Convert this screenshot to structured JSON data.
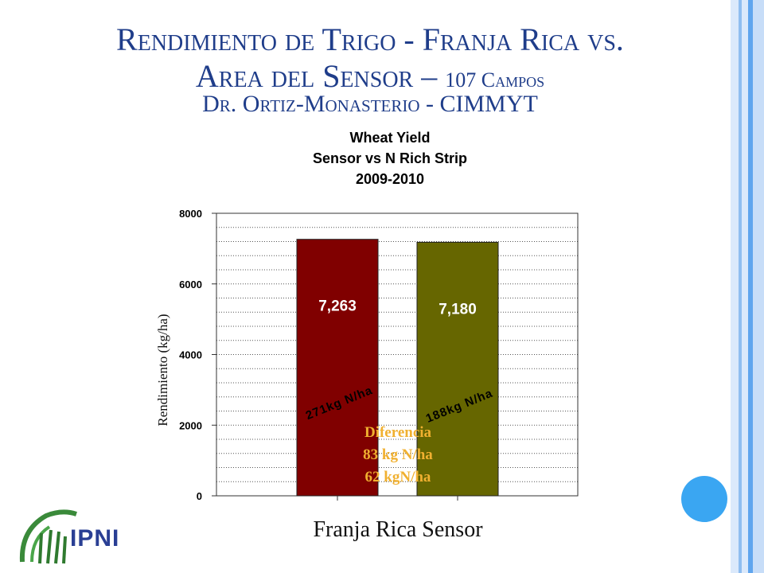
{
  "slide": {
    "title_line1": "Rendimiento de Trigo - Franja Rica vs.",
    "title_line2_main": "Area del Sensor –",
    "title_line2_small": "107 Campos",
    "subtitle": "Dr. Ortiz-Monasterio - CIMMYT",
    "x_caption": "Franja Rica Sensor",
    "logo_text": "IPNI"
  },
  "colors": {
    "title": "#1f3d8a",
    "bar_rich": "#800000",
    "bar_sensor": "#666600",
    "annotation": "#f0b030",
    "accent_circle": "#3aa6f2"
  },
  "chart_data": {
    "type": "bar",
    "title_lines": [
      "Wheat Yield",
      "Sensor vs N Rich Strip",
      "2009-2010"
    ],
    "ylabel": "Rendimiento (kg/ha)",
    "ylim": [
      0,
      8000
    ],
    "yticks": [
      0,
      2000,
      4000,
      6000,
      8000
    ],
    "grid": true,
    "categories": [
      "Franja Rica",
      "Sensor"
    ],
    "values": [
      7263,
      7180
    ],
    "value_labels": [
      "7,263",
      "7,180"
    ],
    "rate_labels": [
      "271kg N/ha",
      "188kg N/ha"
    ],
    "annotation_lines": [
      "Diferencia",
      "83 kg N/ha",
      "62 kgN/ha"
    ]
  }
}
